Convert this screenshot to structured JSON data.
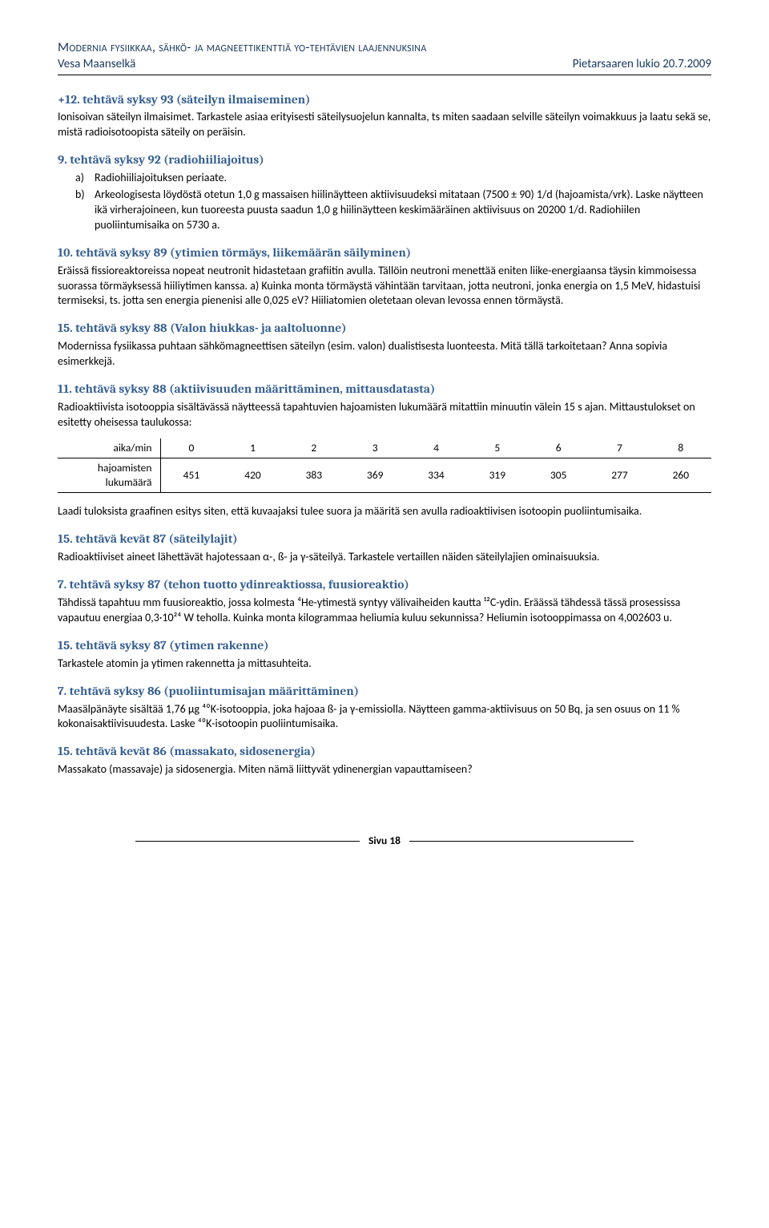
{
  "header": {
    "title": "Modernia fysiikkaa, sähkö- ja magneettikenttiä yo-tehtävien laajennuksina",
    "author": "Vesa Maanselkä",
    "right": "Pietarsaaren lukio 20.7.2009"
  },
  "s1": {
    "title": "+12. tehtävä syksy 93 (säteilyn ilmaiseminen)",
    "p": "Ionisoivan säteilyn ilmaisimet. Tarkastele asiaa erityisesti säteilysuojelun kannalta, ts miten saadaan selville säteilyn voimakkuus ja laatu sekä se, mistä radioisotoopista säteily on peräisin."
  },
  "s2": {
    "title": "9. tehtävä syksy 92 (radiohiiliajoitus)",
    "a": "Radiohiiliajoituksen periaate.",
    "b": "Arkeologisesta löydöstä otetun 1,0 g massaisen hiilinäytteen aktiivisuudeksi mitataan (7500 ± 90) 1/d (hajoamista/vrk). Laske näytteen ikä virherajoineen, kun tuoreesta puusta saadun 1,0 g hiilinäytteen keskimääräinen aktiivisuus on 20200 1/d. Radiohiilen puoliintumisaika on 5730 a."
  },
  "s3": {
    "title": "10. tehtävä syksy 89 (ytimien törmäys, liikemäärän säilyminen)",
    "p": "Eräissä fissioreaktoreissa nopeat neutronit hidastetaan grafiitin avulla. Tällöin neutroni menettää eniten liike-energiaansa täysin kimmoisessa suorassa törmäyksessä hiiliytimen kanssa. a) Kuinka monta törmäystä vähintään tarvitaan, jotta neutroni, jonka energia on 1,5 MeV, hidastuisi termiseksi, ts. jotta sen energia pienenisi alle 0,025 eV? Hiiliatomien oletetaan olevan levossa ennen törmäystä."
  },
  "s4": {
    "title": "15. tehtävä syksy 88 (Valon hiukkas- ja aaltoluonne)",
    "p": "Modernissa fysiikassa puhtaan sähkömagneettisen säteilyn (esim. valon) dualistisesta luonteesta. Mitä tällä tarkoitetaan? Anna sopivia esimerkkejä."
  },
  "s5": {
    "title": "11. tehtävä syksy 88 (aktiivisuuden määrittäminen, mittausdatasta)",
    "p": "Radioaktiivista isotooppia sisältävässä näytteessä tapahtuvien hajoamisten lukumäärä mitattiin minuutin välein 15 s ajan. Mittaustulokset on esitetty oheisessa taulukossa:",
    "p2": "Laadi tuloksista graafinen esitys siten, että kuvaajaksi tulee suora ja määritä sen avulla radioaktiivisen isotoopin puoliintumisaika."
  },
  "table": {
    "row1label": "aika/min",
    "row2label": "hajoamisten lukumäärä",
    "cols": [
      "0",
      "1",
      "2",
      "3",
      "4",
      "5",
      "6",
      "7",
      "8"
    ],
    "vals": [
      "451",
      "420",
      "383",
      "369",
      "334",
      "319",
      "305",
      "277",
      "260"
    ]
  },
  "s6": {
    "title": "15. tehtävä kevät 87 (säteilylajit)",
    "p": "Radioaktiiviset aineet lähettävät hajotessaan α-, ß- ja γ-säteilyä. Tarkastele vertaillen näiden säteilylajien ominaisuuksia."
  },
  "s7": {
    "title": "7. tehtävä syksy 87 (tehon tuotto ydinreaktiossa, fuusioreaktio)",
    "p": "Tähdissä tapahtuu mm fuusioreaktio, jossa kolmesta ⁴He-ytimestä syntyy välivaiheiden kautta ¹²C-ydin. Eräässä tähdessä tässä prosessissa vapautuu energiaa 0,3·10²⁴ W teholla. Kuinka monta kilogrammaa heliumia kuluu sekunnissa? Heliumin isotooppimassa on 4,002603 u."
  },
  "s8": {
    "title": "15. tehtävä syksy 87 (ytimen rakenne)",
    "p": "Tarkastele atomin ja ytimen rakennetta ja mittasuhteita."
  },
  "s9": {
    "title": "7. tehtävä syksy 86 (puoliintumisajan määrittäminen)",
    "p": "Maasälpänäyte sisältää 1,76 µg ⁴⁰K-isotooppia, joka hajoaa ß- ja γ-emissiolla. Näytteen gamma-aktiivisuus on 50 Bq, ja sen osuus on 11 % kokonaisaktiivisuudesta. Laske ⁴⁰K-isotoopin puoliintumisaika."
  },
  "s10": {
    "title": "15. tehtävä kevät 86 (massakato, sidosenergia)",
    "p": "Massakato (massavaje) ja sidosenergia. Miten nämä liittyvät ydinenergian vapauttamiseen?"
  },
  "footer": {
    "text": "Sivu 18"
  }
}
